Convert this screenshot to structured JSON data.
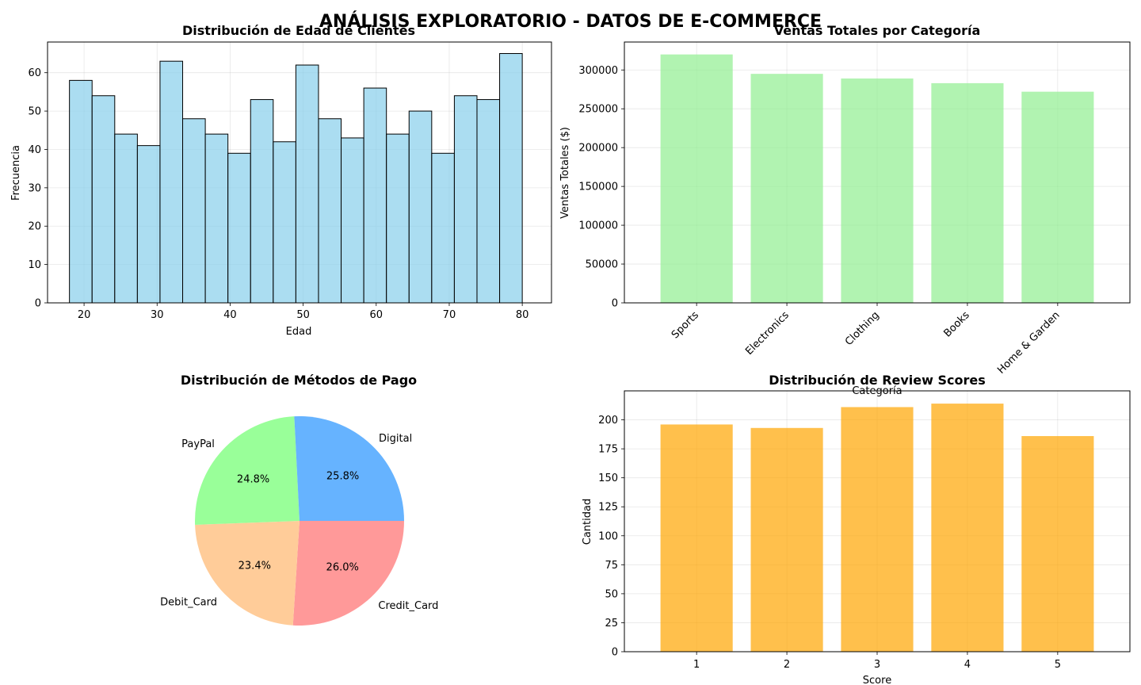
{
  "figure": {
    "title": "ANÁLISIS EXPLORATORIO - DATOS DE E-COMMERCE"
  },
  "chart_data": [
    {
      "type": "bar",
      "subtype": "histogram",
      "title": "Distribución de Edad de Clientes",
      "xlabel": "Edad",
      "ylabel": "Frecuencia",
      "bin_start": 18,
      "bin_width": 3.1,
      "values": [
        58,
        54,
        44,
        41,
        63,
        48,
        44,
        39,
        53,
        42,
        62,
        48,
        43,
        56,
        44,
        50,
        39,
        54,
        53,
        65
      ],
      "xlim": [
        15,
        84
      ],
      "ylim": [
        0,
        68
      ],
      "xticks": [
        20,
        30,
        40,
        50,
        60,
        70,
        80
      ],
      "yticks": [
        0,
        10,
        20,
        30,
        40,
        50,
        60
      ],
      "color": "#87CEEB",
      "edge_color": "#000000",
      "grid": true
    },
    {
      "type": "bar",
      "title": "Ventas Totales por Categoría",
      "xlabel": "Categoría",
      "ylabel": "Ventas Totales ($)",
      "categories": [
        "Sports",
        "Electronics",
        "Clothing",
        "Books",
        "Home & Garden"
      ],
      "values": [
        320000,
        295000,
        289000,
        283000,
        272000
      ],
      "ylim": [
        0,
        336000
      ],
      "yticks": [
        0,
        50000,
        100000,
        150000,
        200000,
        250000,
        300000
      ],
      "color": "#90EE90",
      "grid": true
    },
    {
      "type": "pie",
      "title": "Distribución de Métodos de Pago",
      "labels": [
        "Credit_Card",
        "Debit_Card",
        "PayPal",
        "Digital"
      ],
      "values": [
        26.0,
        23.4,
        24.8,
        25.8
      ],
      "autopct": [
        "26.0%",
        "23.4%",
        "24.8%",
        "25.8%"
      ],
      "colors": [
        "#FF9999",
        "#FFCC99",
        "#99FF99",
        "#66B3FF"
      ]
    },
    {
      "type": "bar",
      "title": "Distribución de Review Scores",
      "xlabel": "Score",
      "ylabel": "Cantidad",
      "categories": [
        "1",
        "2",
        "3",
        "4",
        "5"
      ],
      "values": [
        196,
        193,
        211,
        214,
        186
      ],
      "ylim": [
        0,
        225
      ],
      "yticks": [
        0,
        25,
        50,
        75,
        100,
        125,
        150,
        175,
        200
      ],
      "color": "#FFA500",
      "grid": true
    }
  ]
}
